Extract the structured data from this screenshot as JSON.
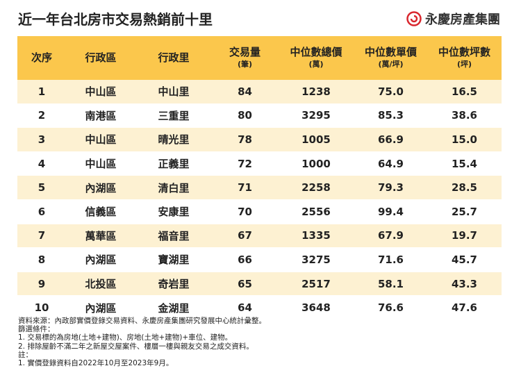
{
  "header": {
    "title": "近一年台北房市交易熱銷前十里",
    "brand": "永慶房產集團"
  },
  "table": {
    "columns": [
      [
        "次序"
      ],
      [
        "行政區"
      ],
      [
        "行政里"
      ],
      [
        "交易量",
        "(筆)"
      ],
      [
        "中位數總價",
        "(萬)"
      ],
      [
        "中位數單價",
        "(萬/坪)"
      ],
      [
        "中位數坪數",
        "(坪)"
      ]
    ],
    "rows": [
      [
        "1",
        "中山區",
        "中山里",
        "84",
        "1238",
        "75.0",
        "16.5"
      ],
      [
        "2",
        "南港區",
        "三重里",
        "80",
        "3295",
        "85.3",
        "38.6"
      ],
      [
        "3",
        "中山區",
        "晴光里",
        "78",
        "1005",
        "66.9",
        "15.0"
      ],
      [
        "4",
        "中山區",
        "正義里",
        "72",
        "1000",
        "64.9",
        "15.4"
      ],
      [
        "5",
        "內湖區",
        "清白里",
        "71",
        "2258",
        "79.3",
        "28.5"
      ],
      [
        "6",
        "信義區",
        "安康里",
        "70",
        "2556",
        "99.4",
        "25.7"
      ],
      [
        "7",
        "萬華區",
        "福音里",
        "67",
        "1335",
        "67.9",
        "19.7"
      ],
      [
        "8",
        "內湖區",
        "寶湖里",
        "66",
        "3275",
        "71.6",
        "45.7"
      ],
      [
        "9",
        "北投區",
        "奇岩里",
        "65",
        "2517",
        "58.1",
        "43.3"
      ],
      [
        "10",
        "內湖區",
        "金湖里",
        "64",
        "3648",
        "76.6",
        "47.6"
      ]
    ]
  },
  "notes": [
    "資料來源：內政部實價登錄交易資料、永慶房產集團研究發展中心統計彙整。",
    "篩選條件：",
    "1. 交易標的為房地(土地+建物)、房地(土地+建物)+車位、建物。",
    "2. 排除屋齡不滿二年之新屋交屋案件、樓層一樓與親友交易之成交資料。",
    "註：",
    "1. 實價登錄資料自2022年10月至2023年9月。"
  ]
}
